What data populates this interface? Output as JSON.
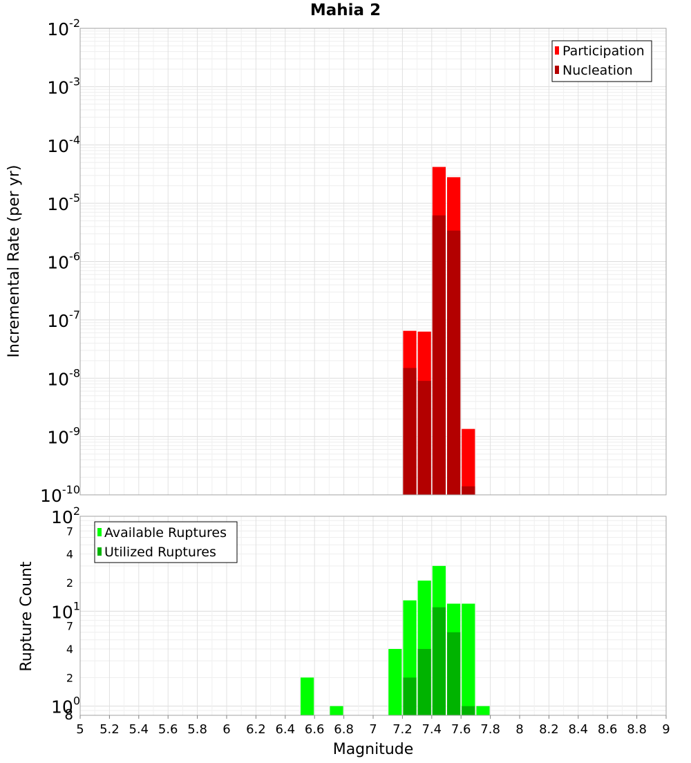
{
  "title": "Mahia 2",
  "xlabel": "Magnitude",
  "x_ticks": [
    "5",
    "5.2",
    "5.4",
    "5.6",
    "5.8",
    "6",
    "6.2",
    "6.4",
    "6.6",
    "6.8",
    "7",
    "7.2",
    "7.4",
    "7.6",
    "7.8",
    "8",
    "8.2",
    "8.4",
    "8.6",
    "8.8",
    "9"
  ],
  "chart_data": [
    {
      "type": "bar",
      "ylabel": "Incremental Rate (per yr)",
      "yscale": "log",
      "xlim": [
        5,
        9
      ],
      "ylim": [
        1e-10,
        0.01
      ],
      "y_ticks": [
        {
          "base": "10",
          "exp": "-10"
        },
        {
          "base": "10",
          "exp": "-9"
        },
        {
          "base": "10",
          "exp": "-8"
        },
        {
          "base": "10",
          "exp": "-7"
        },
        {
          "base": "10",
          "exp": "-6"
        },
        {
          "base": "10",
          "exp": "-5"
        },
        {
          "base": "10",
          "exp": "-4"
        },
        {
          "base": "10",
          "exp": "-3"
        },
        {
          "base": "10",
          "exp": "-2"
        }
      ],
      "legend_position": "top-right",
      "grid": true,
      "x": [
        7.25,
        7.35,
        7.45,
        7.55,
        7.65
      ],
      "series": [
        {
          "name": "Participation",
          "color": "#ff0000",
          "values": [
            6.5e-08,
            6.3e-08,
            4.2e-05,
            2.8e-05,
            1.35e-09
          ]
        },
        {
          "name": "Nucleation",
          "color": "#b30000",
          "values": [
            1.5e-08,
            9e-09,
            6.2e-06,
            3.4e-06,
            1.4e-10
          ]
        }
      ]
    },
    {
      "type": "bar",
      "ylabel": "Rupture Count",
      "yscale": "log",
      "xlim": [
        5,
        9
      ],
      "ylim": [
        0.8,
        100
      ],
      "y_major_ticks": [
        {
          "base": "10",
          "exp": "0"
        },
        {
          "base": "10",
          "exp": "1"
        },
        {
          "base": "10",
          "exp": "2"
        }
      ],
      "y_minor_ticks": [
        "8",
        "2",
        "4",
        "7",
        "2",
        "4",
        "7"
      ],
      "legend_position": "top-left",
      "grid": true,
      "x": [
        6.55,
        6.75,
        7.15,
        7.25,
        7.35,
        7.45,
        7.55,
        7.65,
        7.75
      ],
      "series": [
        {
          "name": "Available Ruptures",
          "color": "#00ff00",
          "values": [
            2,
            1,
            4,
            13,
            21,
            30,
            12,
            12,
            1
          ]
        },
        {
          "name": "Utilized Ruptures",
          "color": "#00b300",
          "values": [
            0,
            0,
            0,
            2,
            4,
            11,
            6,
            1,
            0
          ]
        }
      ]
    }
  ]
}
